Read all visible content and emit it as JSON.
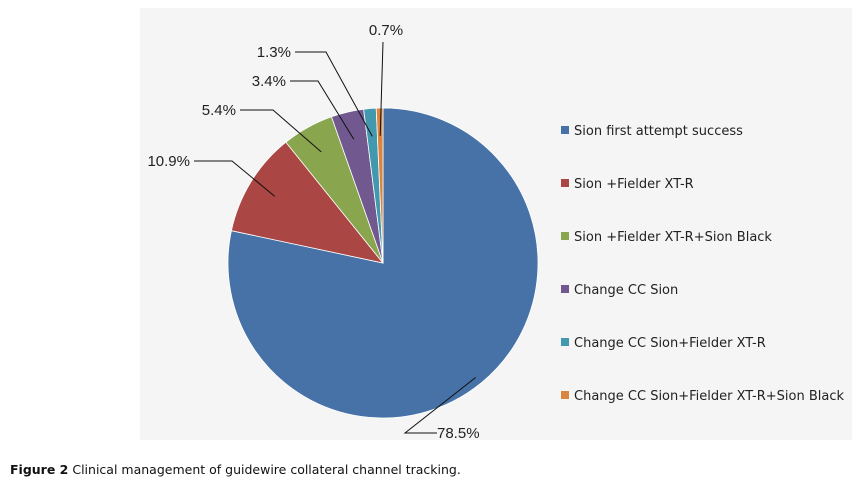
{
  "chart_data": {
    "type": "pie",
    "title": "",
    "series": [
      {
        "values": [
          78.5,
          10.9,
          5.4,
          3.4,
          1.3,
          0.7
        ],
        "labels": [
          "78.5%",
          "10.9%",
          "5.4%",
          "3.4%",
          "1.3%",
          "0.7%"
        ]
      }
    ],
    "categories": [
      "Sion first attempt success",
      "Sion +Fielder XT-R",
      "Sion +Fielder XT-R+Sion Black",
      "Change CC Sion",
      "Change CC Sion+Fielder XT-R",
      "Change CC Sion+Fielder XT-R+Sion Black"
    ],
    "colors": [
      "#4672a8",
      "#aa4644",
      "#89a54e",
      "#71588f",
      "#4298af",
      "#db843d"
    ],
    "start_angle": "12 o'clock",
    "direction": "clockwise",
    "legend_position": "right"
  },
  "caption": {
    "label": "Figure 2",
    "text": "Clinical management of guidewire collateral channel tracking."
  }
}
